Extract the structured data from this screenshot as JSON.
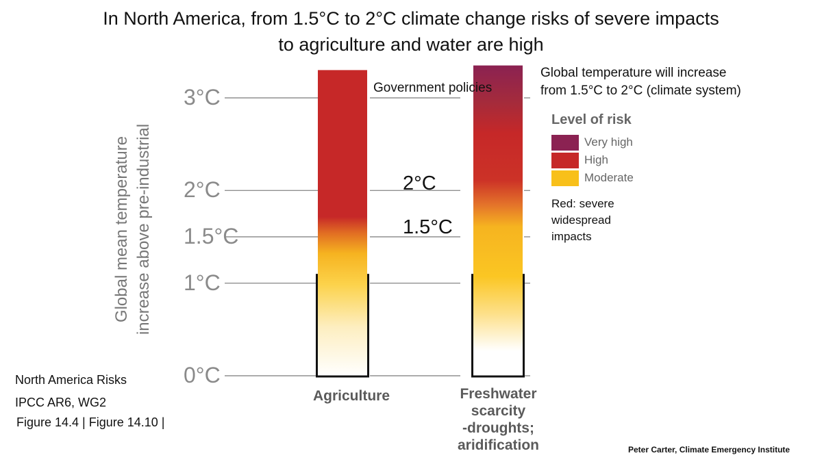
{
  "title": {
    "line1": "In North America, from 1.5°C to 2°C climate change risks of severe impacts",
    "line2": "to agriculture and water are high"
  },
  "chart_data": {
    "type": "bar",
    "ylabel_line1": "Global mean temperature",
    "ylabel_line2": "increase above pre-industrial",
    "ticks": [
      {
        "value": 0,
        "label": "0°C"
      },
      {
        "value": 1,
        "label": "1°C"
      },
      {
        "value": 1.5,
        "label": "1.5°C"
      },
      {
        "value": 2,
        "label": "2°C"
      },
      {
        "value": 3,
        "label": "3°C"
      }
    ],
    "ylim": [
      0,
      3.3
    ],
    "observed_level": 1.1,
    "categories": [
      {
        "name": "Agriculture",
        "top": 3.3
      },
      {
        "name": "Freshwater scarcity -droughts; aridification",
        "top": 3.35
      }
    ],
    "annotations": {
      "government_policies": "Government policies",
      "level_2c": "2°C",
      "level_15c": "1.5°C"
    },
    "legend": {
      "title": "Level of risk",
      "items": [
        {
          "label": "Very high",
          "color": "#8b2252"
        },
        {
          "label": "High",
          "color": "#c62828"
        },
        {
          "label": "Moderate",
          "color": "#f8c01a"
        }
      ]
    }
  },
  "categories_text": {
    "agriculture": "Agriculture",
    "freshwater_l1": "Freshwater",
    "freshwater_l2": "scarcity",
    "freshwater_l3": "-droughts;",
    "freshwater_l4": "aridification"
  },
  "note": {
    "line1": "Global temperature will increase",
    "line2": "from 1.5°C to 2°C (climate system)"
  },
  "red_note": {
    "line1": "Red: severe",
    "line2": "widespread",
    "line3": "impacts"
  },
  "source": {
    "line1": "North America Risks",
    "line2": "IPCC AR6, WG2",
    "line3": "Figure 14.4 |   Figure 14.10 |"
  },
  "credit": "Peter Carter, Climate Emergency Institute"
}
